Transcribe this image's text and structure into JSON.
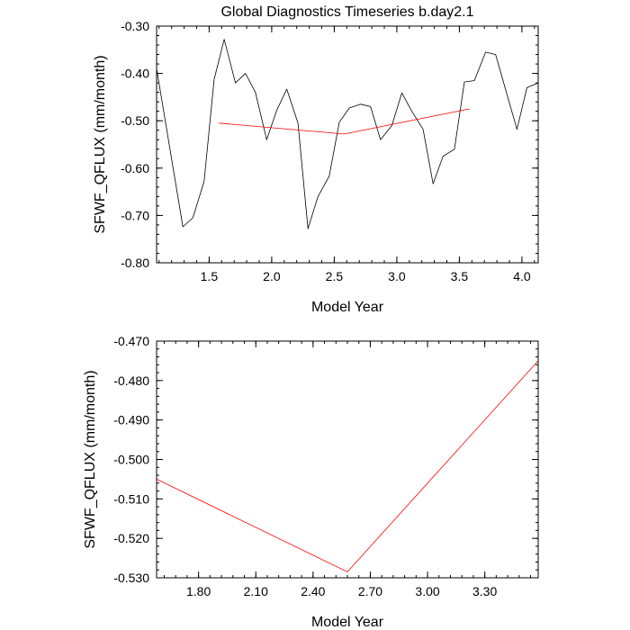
{
  "title": "Global Diagnostics Timeseries b.day2.1",
  "chart_data": [
    {
      "type": "line",
      "xlabel": "Model Year",
      "ylabel": "SFWF_QFLUX (mm/month)",
      "xlim": [
        1.08,
        4.13
      ],
      "ylim": [
        -0.8,
        -0.3
      ],
      "xticks": [
        1.5,
        2.0,
        2.5,
        3.0,
        3.5,
        4.0
      ],
      "xtick_labels": [
        "1.5",
        "2.0",
        "2.5",
        "3.0",
        "3.5",
        "4.0"
      ],
      "yticks": [
        -0.8,
        -0.7,
        -0.6,
        -0.5,
        -0.4,
        -0.3
      ],
      "ytick_labels": [
        "-0.80",
        "-0.70",
        "-0.60",
        "-0.50",
        "-0.40",
        "-0.30"
      ],
      "grid": false,
      "series": [
        {
          "color": "#000000",
          "x": [
            1.08,
            1.29,
            1.37,
            1.46,
            1.54,
            1.62,
            1.71,
            1.79,
            1.87,
            1.96,
            2.04,
            2.12,
            2.21,
            2.29,
            2.37,
            2.46,
            2.54,
            2.62,
            2.71,
            2.79,
            2.87,
            2.96,
            3.04,
            3.12,
            3.21,
            3.29,
            3.37,
            3.46,
            3.54,
            3.62,
            3.71,
            3.79,
            3.87,
            3.96,
            4.04,
            4.13
          ],
          "y": [
            -0.39,
            -0.724,
            -0.705,
            -0.628,
            -0.413,
            -0.328,
            -0.42,
            -0.4,
            -0.44,
            -0.54,
            -0.478,
            -0.433,
            -0.505,
            -0.728,
            -0.66,
            -0.617,
            -0.503,
            -0.473,
            -0.465,
            -0.47,
            -0.54,
            -0.51,
            -0.441,
            -0.48,
            -0.518,
            -0.633,
            -0.575,
            -0.56,
            -0.418,
            -0.415,
            -0.355,
            -0.36,
            -0.435,
            -0.518,
            -0.43,
            -0.42
          ]
        },
        {
          "color": "#ff0000",
          "x": [
            1.58,
            2.58,
            3.58
          ],
          "y": [
            -0.505,
            -0.528,
            -0.475
          ]
        }
      ]
    },
    {
      "type": "line",
      "xlabel": "Model Year",
      "ylabel": "SFWF_QFLUX (mm/month)",
      "xlim": [
        1.58,
        3.58
      ],
      "ylim": [
        -0.53,
        -0.47
      ],
      "xticks": [
        1.8,
        2.1,
        2.4,
        2.7,
        3.0,
        3.3
      ],
      "xtick_labels": [
        "1.80",
        "2.10",
        "2.40",
        "2.70",
        "3.00",
        "3.30"
      ],
      "yticks": [
        -0.53,
        -0.52,
        -0.51,
        -0.5,
        -0.49,
        -0.48,
        -0.47
      ],
      "ytick_labels": [
        "-0.530",
        "-0.520",
        "-0.510",
        "-0.500",
        "-0.490",
        "-0.480",
        "-0.470"
      ],
      "grid": false,
      "series": [
        {
          "color": "#ff0000",
          "x": [
            1.58,
            2.58,
            3.58
          ],
          "y": [
            -0.505,
            -0.5285,
            -0.475
          ]
        }
      ]
    }
  ]
}
